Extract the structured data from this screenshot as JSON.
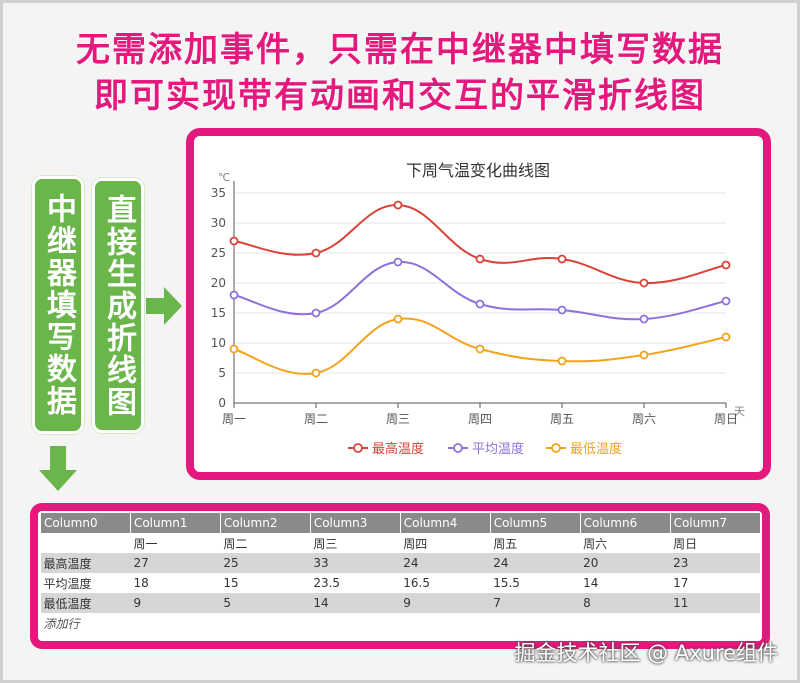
{
  "headline": {
    "line1": "无需添加事件，只需在中继器中填写数据",
    "line2": "即可实现带有动画和交互的平滑折线图"
  },
  "callouts": {
    "box1": "中继器填写数据",
    "box2": "直接生成折线图"
  },
  "colors": {
    "accent": "#e4197e",
    "green": "#6ab64a",
    "max": "#d9433a",
    "avg": "#8e72d9",
    "min": "#f2a21b"
  },
  "chart_data": {
    "type": "line",
    "title": "下周气温变化曲线图",
    "ylabel": "℃",
    "xlabel": "天",
    "ylim": [
      0,
      35
    ],
    "yticks": [
      0,
      5,
      10,
      15,
      20,
      25,
      30,
      35
    ],
    "categories": [
      "周一",
      "周二",
      "周三",
      "周四",
      "周五",
      "周六",
      "周日"
    ],
    "series": [
      {
        "name": "最高温度",
        "values": [
          27,
          25,
          33,
          24,
          24,
          20,
          23
        ]
      },
      {
        "name": "平均温度",
        "values": [
          18,
          15,
          23.5,
          16.5,
          15.5,
          14,
          17
        ]
      },
      {
        "name": "最低温度",
        "values": [
          9,
          5,
          14,
          9,
          7,
          8,
          11
        ]
      }
    ],
    "legend_position": "bottom"
  },
  "table": {
    "headers": [
      "Column0",
      "Column1",
      "Column2",
      "Column3",
      "Column4",
      "Column5",
      "Column6",
      "Column7"
    ],
    "rows": [
      [
        "",
        "周一",
        "周二",
        "周三",
        "周四",
        "周五",
        "周六",
        "周日"
      ],
      [
        "最高温度",
        "27",
        "25",
        "33",
        "24",
        "24",
        "20",
        "23"
      ],
      [
        "平均温度",
        "18",
        "15",
        "23.5",
        "16.5",
        "15.5",
        "14",
        "17"
      ],
      [
        "最低温度",
        "9",
        "5",
        "14",
        "9",
        "7",
        "8",
        "11"
      ]
    ],
    "add_row_label": "添加行"
  },
  "watermark": "掘金技术社区 @ Axure组件"
}
